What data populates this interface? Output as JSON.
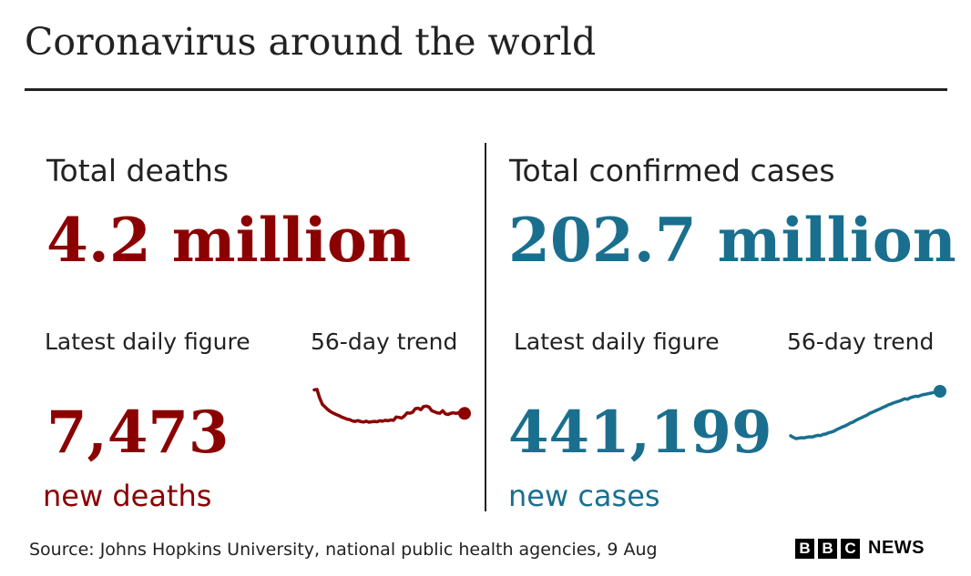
{
  "header": {
    "title": "Coronavirus around the world"
  },
  "colors": {
    "deaths": "#8b0000",
    "cases": "#1a6f8f",
    "text": "#222222"
  },
  "deaths": {
    "section_title": "Total deaths",
    "total": "4.2 million",
    "latest_label": "Latest daily figure",
    "trend_label": "56-day trend",
    "daily_value": "7,473",
    "daily_unit": "new deaths"
  },
  "cases": {
    "section_title": "Total confirmed cases",
    "total": "202.7 million",
    "latest_label": "Latest daily figure",
    "trend_label": "56-day trend",
    "daily_value": "441,199",
    "daily_unit": "new cases"
  },
  "footer": {
    "source": "Source: Johns Hopkins University, national public health agencies, 9 Aug",
    "logo_letters": [
      "B",
      "B",
      "C"
    ],
    "logo_news": "NEWS"
  },
  "chart_data": [
    {
      "type": "line",
      "title": "56-day trend",
      "series": [
        {
          "values": [
            8600,
            8620,
            8200,
            7900,
            7780,
            7650,
            7550,
            7480,
            7420,
            7370,
            7300,
            7250,
            7200,
            7170,
            7110,
            7090,
            7130,
            7080,
            7060,
            7100,
            7050,
            7070,
            7090,
            7070,
            7120,
            7100,
            7140,
            7120,
            7160,
            7140,
            7300,
            7280,
            7250,
            7350,
            7500,
            7480,
            7530,
            7700,
            7720,
            7650,
            7800,
            7820,
            7780,
            7600,
            7550,
            7500,
            7480,
            7600,
            7450,
            7420,
            7480,
            7500,
            7470,
            7520,
            7490,
            7473
          ]
        }
      ]
    },
    {
      "type": "line",
      "title": "56-day trend",
      "series": [
        {
          "values": [
            250000,
            243000,
            238000,
            240000,
            242000,
            241000,
            244000,
            246000,
            245000,
            249000,
            252000,
            251000,
            256000,
            258000,
            263000,
            266000,
            270000,
            277000,
            282000,
            288000,
            292000,
            298000,
            305000,
            309000,
            316000,
            322000,
            327000,
            333000,
            338000,
            346000,
            351000,
            356000,
            361000,
            366000,
            372000,
            377000,
            383000,
            387000,
            392000,
            396000,
            399000,
            404000,
            409000,
            407000,
            413000,
            417000,
            420000,
            419000,
            424000,
            427000,
            429000,
            432000,
            434000,
            437000,
            439000,
            441199
          ]
        }
      ]
    }
  ]
}
